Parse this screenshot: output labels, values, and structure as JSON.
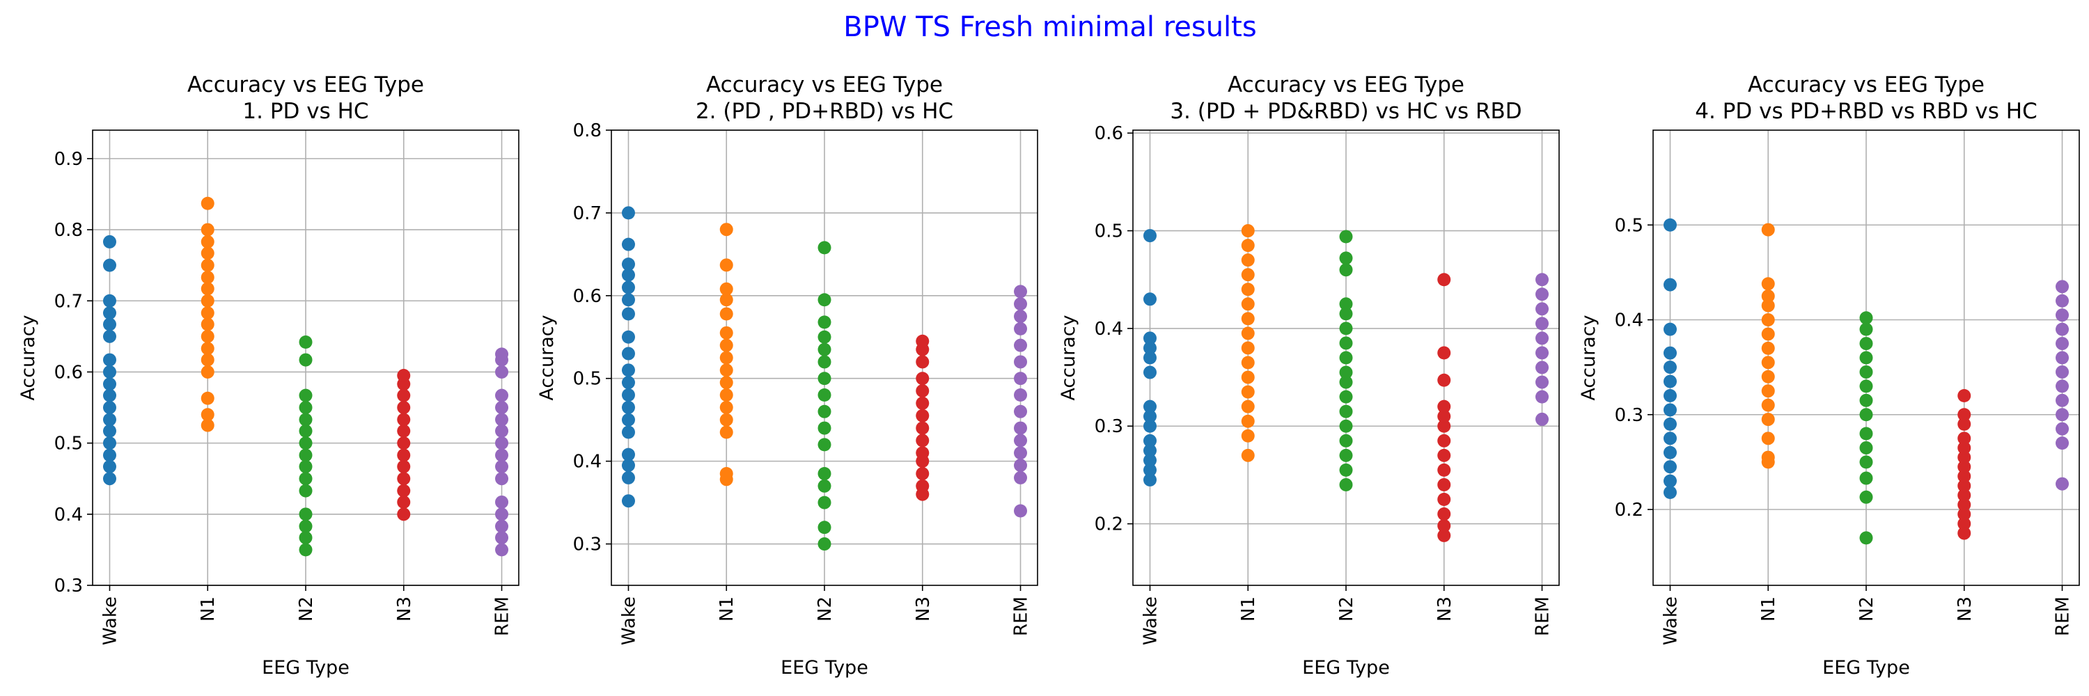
{
  "figure_title": "BPW TS Fresh minimal results",
  "colors": {
    "Wake": "#1f77b4",
    "N1": "#ff7f0e",
    "N2": "#2ca02c",
    "N3": "#d62728",
    "REM": "#9467bd",
    "title": "#0000ff"
  },
  "chart_data": [
    {
      "type": "scatter",
      "title": "Accuracy vs EEG Type\n1. PD vs HC",
      "xlabel": "EEG Type",
      "ylabel": "Accuracy",
      "categories": [
        "Wake",
        "N1",
        "N2",
        "N3",
        "REM"
      ],
      "ylim": [
        0.3,
        0.94
      ],
      "yticks": [
        0.3,
        0.4,
        0.5,
        0.6,
        0.7,
        0.8,
        0.9
      ],
      "grid": true,
      "points": {
        "Wake": [
          0.45,
          0.467,
          0.483,
          0.5,
          0.517,
          0.533,
          0.55,
          0.567,
          0.583,
          0.6,
          0.617,
          0.65,
          0.667,
          0.683,
          0.7,
          0.75,
          0.783
        ],
        "N1": [
          0.525,
          0.54,
          0.563,
          0.6,
          0.617,
          0.633,
          0.65,
          0.667,
          0.683,
          0.7,
          0.717,
          0.733,
          0.75,
          0.767,
          0.783,
          0.8,
          0.837
        ],
        "N2": [
          0.35,
          0.367,
          0.383,
          0.4,
          0.433,
          0.45,
          0.467,
          0.483,
          0.5,
          0.517,
          0.533,
          0.55,
          0.567,
          0.617,
          0.642
        ],
        "N3": [
          0.4,
          0.417,
          0.433,
          0.45,
          0.467,
          0.483,
          0.5,
          0.517,
          0.533,
          0.55,
          0.567,
          0.583,
          0.595
        ],
        "REM": [
          0.35,
          0.367,
          0.383,
          0.4,
          0.417,
          0.45,
          0.467,
          0.483,
          0.5,
          0.517,
          0.533,
          0.55,
          0.567,
          0.6,
          0.617,
          0.625
        ]
      }
    },
    {
      "type": "scatter",
      "title": "Accuracy vs EEG Type\n2. (PD , PD+RBD) vs HC",
      "xlabel": "EEG Type",
      "ylabel": "Accuracy",
      "categories": [
        "Wake",
        "N1",
        "N2",
        "N3",
        "REM"
      ],
      "ylim": [
        0.25,
        0.8
      ],
      "yticks": [
        0.3,
        0.4,
        0.5,
        0.6,
        0.7,
        0.8
      ],
      "grid": true,
      "points": {
        "Wake": [
          0.352,
          0.38,
          0.395,
          0.408,
          0.435,
          0.45,
          0.465,
          0.48,
          0.495,
          0.51,
          0.53,
          0.55,
          0.578,
          0.595,
          0.61,
          0.625,
          0.638,
          0.662,
          0.7
        ],
        "N1": [
          0.378,
          0.385,
          0.435,
          0.45,
          0.465,
          0.48,
          0.495,
          0.51,
          0.525,
          0.54,
          0.555,
          0.578,
          0.595,
          0.608,
          0.637,
          0.68
        ],
        "N2": [
          0.3,
          0.32,
          0.35,
          0.37,
          0.385,
          0.42,
          0.44,
          0.46,
          0.48,
          0.5,
          0.52,
          0.535,
          0.55,
          0.568,
          0.595,
          0.658
        ],
        "N3": [
          0.36,
          0.37,
          0.385,
          0.4,
          0.41,
          0.425,
          0.44,
          0.455,
          0.47,
          0.485,
          0.5,
          0.52,
          0.535,
          0.545
        ],
        "REM": [
          0.34,
          0.38,
          0.395,
          0.41,
          0.425,
          0.44,
          0.46,
          0.48,
          0.5,
          0.52,
          0.54,
          0.56,
          0.575,
          0.59,
          0.605
        ]
      }
    },
    {
      "type": "scatter",
      "title": "Accuracy vs EEG Type\n3. (PD + PD&RBD) vs HC vs RBD",
      "xlabel": "EEG Type",
      "ylabel": "Accuracy",
      "categories": [
        "Wake",
        "N1",
        "N2",
        "N3",
        "REM"
      ],
      "ylim": [
        0.137,
        0.603
      ],
      "yticks": [
        0.2,
        0.3,
        0.4,
        0.5,
        0.6
      ],
      "grid": true,
      "points": {
        "Wake": [
          0.245,
          0.255,
          0.265,
          0.275,
          0.285,
          0.3,
          0.31,
          0.32,
          0.355,
          0.37,
          0.38,
          0.39,
          0.43,
          0.495
        ],
        "N1": [
          0.27,
          0.29,
          0.305,
          0.32,
          0.335,
          0.35,
          0.365,
          0.38,
          0.395,
          0.41,
          0.425,
          0.44,
          0.455,
          0.47,
          0.485,
          0.5
        ],
        "N2": [
          0.24,
          0.255,
          0.27,
          0.285,
          0.3,
          0.315,
          0.33,
          0.345,
          0.355,
          0.37,
          0.385,
          0.4,
          0.415,
          0.425,
          0.46,
          0.472,
          0.494
        ],
        "N3": [
          0.188,
          0.198,
          0.21,
          0.225,
          0.24,
          0.255,
          0.27,
          0.285,
          0.3,
          0.31,
          0.32,
          0.347,
          0.375,
          0.45
        ],
        "REM": [
          0.307,
          0.33,
          0.345,
          0.36,
          0.375,
          0.39,
          0.405,
          0.42,
          0.435,
          0.45
        ]
      }
    },
    {
      "type": "scatter",
      "title": "Accuracy vs EEG Type\n4. PD vs PD+RBD vs RBD vs HC",
      "xlabel": "EEG Type",
      "ylabel": "Accuracy",
      "categories": [
        "Wake",
        "N1",
        "N2",
        "N3",
        "REM"
      ],
      "ylim": [
        0.12,
        0.6
      ],
      "yticks": [
        0.2,
        0.3,
        0.4,
        0.5
      ],
      "grid": true,
      "points": {
        "Wake": [
          0.218,
          0.23,
          0.245,
          0.26,
          0.275,
          0.29,
          0.305,
          0.32,
          0.335,
          0.35,
          0.365,
          0.39,
          0.437,
          0.5
        ],
        "N1": [
          0.25,
          0.255,
          0.275,
          0.295,
          0.31,
          0.325,
          0.34,
          0.355,
          0.37,
          0.385,
          0.4,
          0.415,
          0.425,
          0.438,
          0.495
        ],
        "N2": [
          0.17,
          0.213,
          0.233,
          0.25,
          0.265,
          0.28,
          0.3,
          0.315,
          0.33,
          0.345,
          0.36,
          0.375,
          0.39,
          0.402
        ],
        "N3": [
          0.175,
          0.185,
          0.195,
          0.205,
          0.215,
          0.225,
          0.235,
          0.245,
          0.255,
          0.265,
          0.275,
          0.29,
          0.3,
          0.32
        ],
        "REM": [
          0.227,
          0.27,
          0.285,
          0.3,
          0.315,
          0.33,
          0.345,
          0.36,
          0.375,
          0.39,
          0.405,
          0.42,
          0.435
        ]
      }
    }
  ]
}
